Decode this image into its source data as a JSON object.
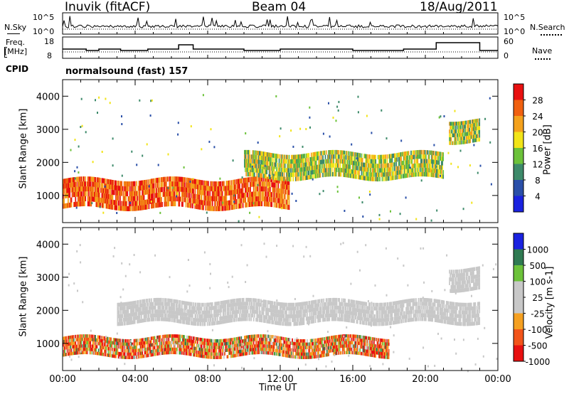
{
  "header": {
    "station": "Inuvik (fitACF)",
    "beam": "Beam 04",
    "date": "18/Aug/2011"
  },
  "noise_panel": {
    "left_label": "N.Sky",
    "left_ticks": [
      "10^5",
      "10^0"
    ],
    "right_label": "N.Search",
    "right_ticks": [
      "10^5",
      "10^0"
    ]
  },
  "freq_panel": {
    "left_label_1": "Freq.",
    "left_label_2": "[MHz]",
    "left_ticks": [
      "18",
      "8"
    ],
    "right_label": "Nave",
    "right_ticks": [
      "60",
      "0"
    ]
  },
  "cpid": {
    "label": "CPID",
    "text": "normalsound (fast) 157"
  },
  "x_axis": {
    "label": "Time UT",
    "ticks": [
      "00:00",
      "04:00",
      "08:00",
      "12:00",
      "16:00",
      "20:00",
      "00:00"
    ]
  },
  "colors": {
    "power": [
      "#1a22e0",
      "#2a4fa8",
      "#3d8a6a",
      "#6cc23a",
      "#f2e418",
      "#f4a11c",
      "#f06010",
      "#e81010"
    ],
    "velocity": [
      "#e81010",
      "#f2541a",
      "#f5a021",
      "#c8c8c8",
      "#c8c8c8",
      "#6cc23a",
      "#2f7a52",
      "#1a22e0"
    ]
  },
  "chart_data": [
    {
      "type": "heatmap",
      "title": "",
      "ylabel": "Slant Range [km]",
      "xlabel": "",
      "x_range_hours": [
        0,
        24
      ],
      "ylim": [
        180,
        4500
      ],
      "yticks": [
        "4000",
        "3000",
        "2000",
        "1000"
      ],
      "colorbar": {
        "label": "Power [dB]",
        "ticks": [
          "28",
          "24",
          "20",
          "16",
          "12",
          "8",
          "4"
        ]
      },
      "features": [
        {
          "t_start": 0.0,
          "t_end": 12.5,
          "range_min": 600,
          "range_max": 1500,
          "level": "high power"
        },
        {
          "t_start": 10.0,
          "t_end": 21.0,
          "range_min": 1500,
          "range_max": 2300,
          "level": "medium power"
        },
        {
          "t_start": 21.3,
          "t_end": 23.0,
          "range_min": 2600,
          "range_max": 3300,
          "level": "medium power"
        }
      ]
    },
    {
      "type": "heatmap",
      "title": "",
      "ylabel": "Slant Range [km]",
      "xlabel": "Time UT",
      "x_range_hours": [
        0,
        24
      ],
      "ylim": [
        180,
        4500
      ],
      "yticks": [
        "4000",
        "3000",
        "2000",
        "1000"
      ],
      "colorbar": {
        "label": "Velocity [m s-1]",
        "ticks": [
          "1000",
          "500",
          "100",
          "25",
          "-25",
          "-100",
          "-500",
          "-1000"
        ]
      },
      "features": [
        {
          "t_start": 0.0,
          "t_end": 18.0,
          "range_min": 600,
          "range_max": 1200,
          "level": "negative velocity"
        },
        {
          "t_start": 3.0,
          "t_end": 23.0,
          "range_min": 1600,
          "range_max": 2300,
          "level": "near zero"
        },
        {
          "t_start": 21.3,
          "t_end": 23.0,
          "range_min": 2600,
          "range_max": 3300,
          "level": "near zero"
        }
      ]
    }
  ]
}
